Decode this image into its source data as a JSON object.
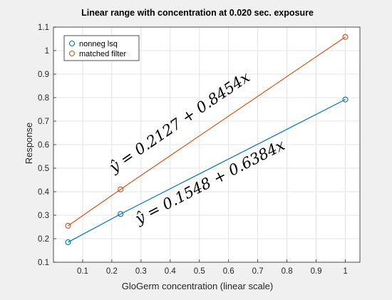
{
  "chart_data": {
    "type": "line",
    "title": "Linear range with concentration at 0.020 sec. exposure",
    "xlabel": "GloGerm concentration (linear scale)",
    "ylabel": "Response",
    "xlim": [
      0,
      1.05
    ],
    "ylim": [
      0.1,
      1.1
    ],
    "xticks": [
      0.1,
      0.2,
      0.3,
      0.4,
      0.5,
      0.6,
      0.7,
      0.8,
      0.9,
      1
    ],
    "yticks": [
      0.1,
      0.2,
      0.3,
      0.4,
      0.5,
      0.6,
      0.7,
      0.8,
      0.9,
      1,
      1.1
    ],
    "grid": true,
    "legend_position": "top-left",
    "series": [
      {
        "name": "nonneg lsq",
        "color": "#0072bd",
        "x": [
          0.05,
          0.23,
          1.0
        ],
        "y": [
          0.185,
          0.305,
          0.792
        ],
        "fit": {
          "intercept": 0.1548,
          "slope": 0.6384
        },
        "equation": "ŷ = 0.1548 + 0.6384x"
      },
      {
        "name": "matched filter",
        "color": "#d95319",
        "x": [
          0.05,
          0.23,
          1.0
        ],
        "y": [
          0.255,
          0.41,
          1.058
        ],
        "fit": {
          "intercept": 0.2127,
          "slope": 0.8454
        },
        "equation": "ŷ = 0.2127 + 0.8454x"
      }
    ]
  }
}
